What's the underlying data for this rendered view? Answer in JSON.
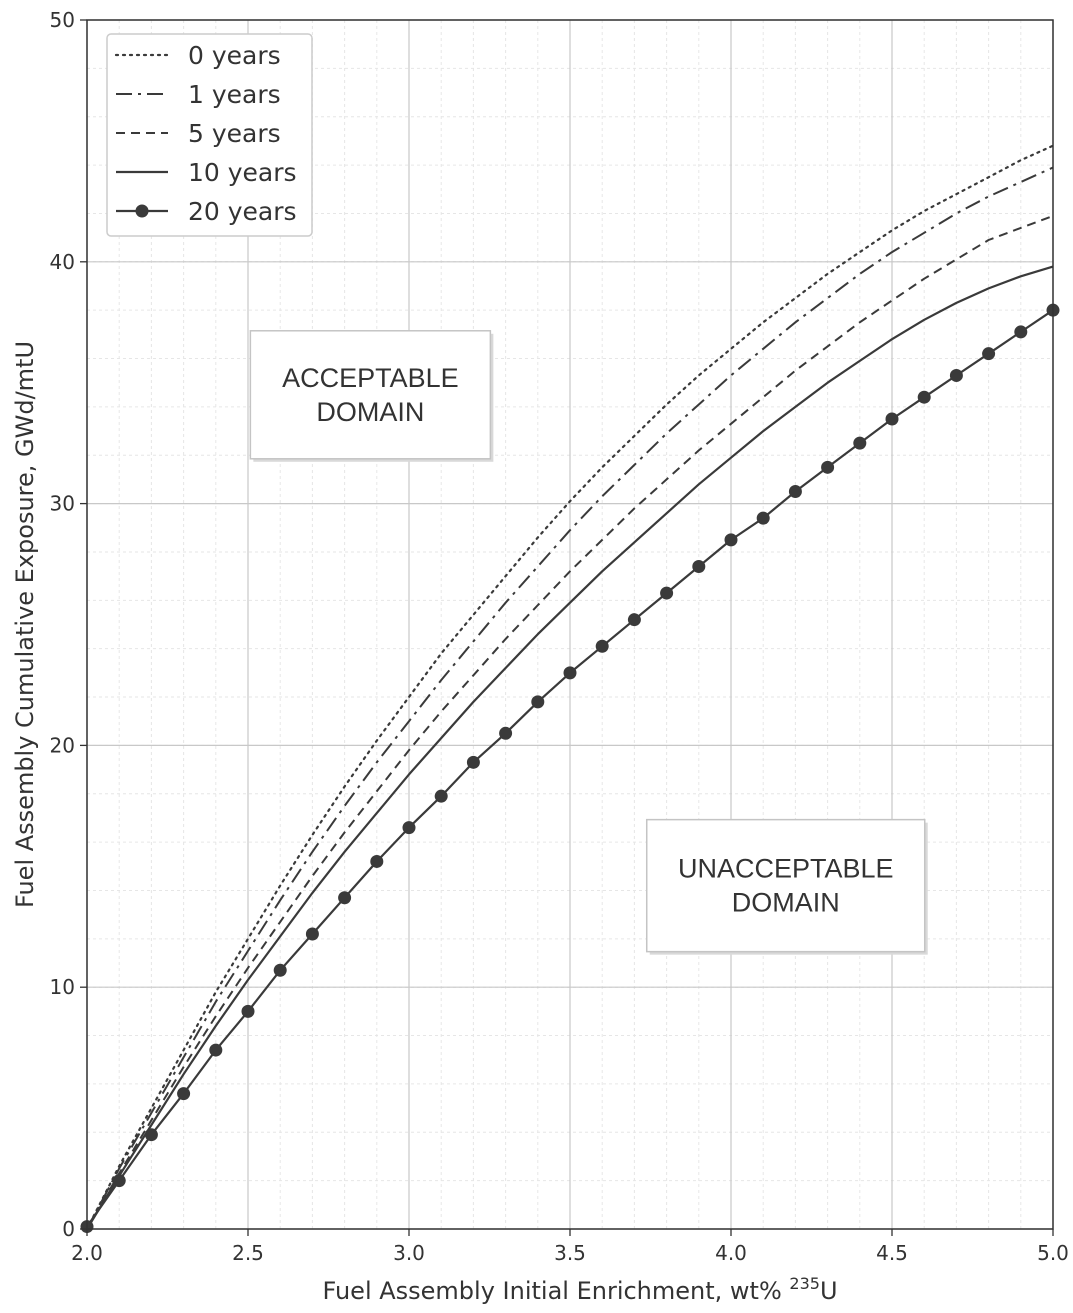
{
  "chart_data": {
    "type": "line",
    "xlabel": "Fuel Assembly Initial Enrichment, wt%",
    "xlabel_sup": "235",
    "xlabel_suffix": "U",
    "ylabel": "Fuel Assembly Cumulative Exposure, GWd/mtU",
    "xlim": [
      2.0,
      5.0
    ],
    "ylim": [
      0,
      50
    ],
    "xticks": [
      "2.0",
      "2.5",
      "3.0",
      "3.5",
      "4.0",
      "4.5",
      "5.0"
    ],
    "yticks": [
      "0",
      "10",
      "20",
      "30",
      "40",
      "50"
    ],
    "grid": true,
    "minor_grid": true,
    "legend_position": "top-left",
    "series": [
      {
        "name": "0 years",
        "style": "dotted",
        "x": [
          2.0,
          2.1,
          2.2,
          2.3,
          2.4,
          2.5,
          2.6,
          2.7,
          2.8,
          2.9,
          3.0,
          3.1,
          3.2,
          3.3,
          3.4,
          3.5,
          3.6,
          3.7,
          3.8,
          3.9,
          4.0,
          4.1,
          4.2,
          4.3,
          4.4,
          4.5,
          4.6,
          4.7,
          4.8,
          4.9,
          5.0
        ],
        "y": [
          0,
          2.6,
          5.0,
          7.4,
          9.8,
          12.0,
          14.2,
          16.3,
          18.3,
          20.2,
          22.0,
          23.8,
          25.4,
          27.0,
          28.6,
          30.1,
          31.5,
          32.8,
          34.1,
          35.3,
          36.4,
          37.5,
          38.5,
          39.5,
          40.4,
          41.3,
          42.1,
          42.8,
          43.5,
          44.2,
          44.8
        ]
      },
      {
        "name": "1 years",
        "style": "dashdot",
        "x": [
          2.0,
          2.1,
          2.2,
          2.3,
          2.4,
          2.5,
          2.6,
          2.7,
          2.8,
          2.9,
          3.0,
          3.1,
          3.2,
          3.3,
          3.4,
          3.5,
          3.6,
          3.7,
          3.8,
          3.9,
          4.0,
          4.1,
          4.2,
          4.3,
          4.4,
          4.5,
          4.6,
          4.7,
          4.8,
          4.9,
          5.0
        ],
        "y": [
          0,
          2.5,
          4.8,
          7.1,
          9.4,
          11.5,
          13.6,
          15.6,
          17.5,
          19.3,
          21.0,
          22.7,
          24.3,
          25.9,
          27.4,
          28.9,
          30.3,
          31.6,
          32.9,
          34.1,
          35.3,
          36.4,
          37.5,
          38.5,
          39.5,
          40.4,
          41.2,
          42.0,
          42.7,
          43.3,
          43.9
        ]
      },
      {
        "name": "5 years",
        "style": "dashed",
        "x": [
          2.0,
          2.1,
          2.2,
          2.3,
          2.4,
          2.5,
          2.6,
          2.7,
          2.8,
          2.9,
          3.0,
          3.1,
          3.2,
          3.3,
          3.4,
          3.5,
          3.6,
          3.7,
          3.8,
          3.9,
          4.0,
          4.1,
          4.2,
          4.3,
          4.4,
          4.5,
          4.6,
          4.7,
          4.8,
          4.9,
          5.0
        ],
        "y": [
          0,
          2.3,
          4.5,
          6.7,
          8.8,
          10.8,
          12.7,
          14.6,
          16.4,
          18.1,
          19.8,
          21.4,
          22.9,
          24.4,
          25.8,
          27.2,
          28.5,
          29.8,
          31.0,
          32.2,
          33.3,
          34.4,
          35.5,
          36.5,
          37.5,
          38.4,
          39.3,
          40.1,
          40.9,
          41.4,
          41.9
        ]
      },
      {
        "name": "10 years",
        "style": "solid",
        "x": [
          2.0,
          2.1,
          2.2,
          2.3,
          2.4,
          2.5,
          2.6,
          2.7,
          2.8,
          2.9,
          3.0,
          3.1,
          3.2,
          3.3,
          3.4,
          3.5,
          3.6,
          3.7,
          3.8,
          3.9,
          4.0,
          4.1,
          4.2,
          4.3,
          4.4,
          4.5,
          4.6,
          4.7,
          4.8,
          4.9,
          5.0
        ],
        "y": [
          0,
          2.2,
          4.3,
          6.4,
          8.4,
          10.3,
          12.1,
          13.9,
          15.6,
          17.2,
          18.8,
          20.3,
          21.8,
          23.2,
          24.6,
          25.9,
          27.2,
          28.4,
          29.6,
          30.8,
          31.9,
          33.0,
          34.0,
          35.0,
          35.9,
          36.8,
          37.6,
          38.3,
          38.9,
          39.4,
          39.8
        ]
      },
      {
        "name": "20 years",
        "style": "solid-markers",
        "x": [
          2.0,
          2.1,
          2.2,
          2.3,
          2.4,
          2.5,
          2.6,
          2.7,
          2.8,
          2.9,
          3.0,
          3.1,
          3.2,
          3.3,
          3.4,
          3.5,
          3.6,
          3.7,
          3.8,
          3.9,
          4.0,
          4.1,
          4.2,
          4.3,
          4.4,
          4.5,
          4.6,
          4.7,
          4.8,
          4.9,
          5.0
        ],
        "y": [
          0.1,
          2.0,
          3.9,
          5.6,
          7.4,
          9.0,
          10.7,
          12.2,
          13.7,
          15.2,
          16.6,
          17.9,
          19.3,
          20.5,
          21.8,
          23.0,
          24.1,
          25.2,
          26.3,
          27.4,
          28.5,
          29.4,
          30.5,
          31.5,
          32.5,
          33.5,
          34.4,
          35.3,
          36.2,
          37.1,
          38.0
        ]
      }
    ],
    "annotations": [
      {
        "lines": [
          "ACCEPTABLE",
          "DOMAIN"
        ],
        "x": 2.88,
        "y": 34.5
      },
      {
        "lines": [
          "UNACCEPTABLE",
          "DOMAIN"
        ],
        "x": 4.17,
        "y": 14.2
      }
    ]
  }
}
